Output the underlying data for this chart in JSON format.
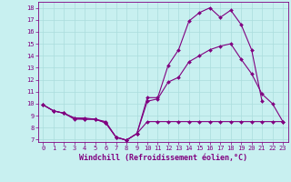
{
  "xlabel": "Windchill (Refroidissement éolien,°C)",
  "bg_color": "#c8f0f0",
  "grid_color": "#b0d8d8",
  "line_color": "#800080",
  "xlim": [
    -0.5,
    23.5
  ],
  "ylim": [
    6.8,
    18.5
  ],
  "yticks": [
    7,
    8,
    9,
    10,
    11,
    12,
    13,
    14,
    15,
    16,
    17,
    18
  ],
  "xticks": [
    0,
    1,
    2,
    3,
    4,
    5,
    6,
    7,
    8,
    9,
    10,
    11,
    12,
    13,
    14,
    15,
    16,
    17,
    18,
    19,
    20,
    21,
    22,
    23
  ],
  "line1_x": [
    0,
    1,
    2,
    3,
    4,
    5,
    6,
    7,
    8,
    9,
    10,
    11,
    12,
    13,
    14,
    15,
    16,
    17,
    18,
    19,
    20,
    21
  ],
  "line1_y": [
    9.9,
    9.4,
    9.2,
    8.8,
    8.8,
    8.7,
    8.5,
    7.2,
    6.95,
    7.5,
    10.5,
    10.5,
    13.2,
    14.5,
    16.9,
    17.6,
    18.0,
    17.2,
    17.8,
    16.6,
    14.5,
    10.2
  ],
  "line2_x": [
    0,
    1,
    2,
    3,
    4,
    5,
    6,
    7,
    8,
    9,
    10,
    11,
    12,
    13,
    14,
    15,
    16,
    17,
    18,
    19,
    20,
    21,
    22,
    23
  ],
  "line2_y": [
    9.9,
    9.4,
    9.2,
    8.8,
    8.7,
    8.7,
    8.4,
    7.2,
    6.95,
    7.5,
    10.2,
    10.4,
    11.8,
    12.2,
    13.5,
    14.0,
    14.5,
    14.8,
    15.0,
    13.7,
    12.5,
    10.8,
    10.0,
    8.5
  ],
  "line3_x": [
    0,
    1,
    2,
    3,
    4,
    5,
    6,
    7,
    8,
    9,
    10,
    11,
    12,
    13,
    14,
    15,
    16,
    17,
    18,
    19,
    20,
    21,
    22,
    23
  ],
  "line3_y": [
    9.9,
    9.4,
    9.2,
    8.7,
    8.7,
    8.7,
    8.4,
    7.2,
    6.95,
    7.5,
    8.5,
    8.5,
    8.5,
    8.5,
    8.5,
    8.5,
    8.5,
    8.5,
    8.5,
    8.5,
    8.5,
    8.5,
    8.5,
    8.5
  ],
  "marker": "D",
  "markersize": 2.0,
  "linewidth": 0.8,
  "tick_fontsize": 5.0,
  "xlabel_fontsize": 6.0
}
